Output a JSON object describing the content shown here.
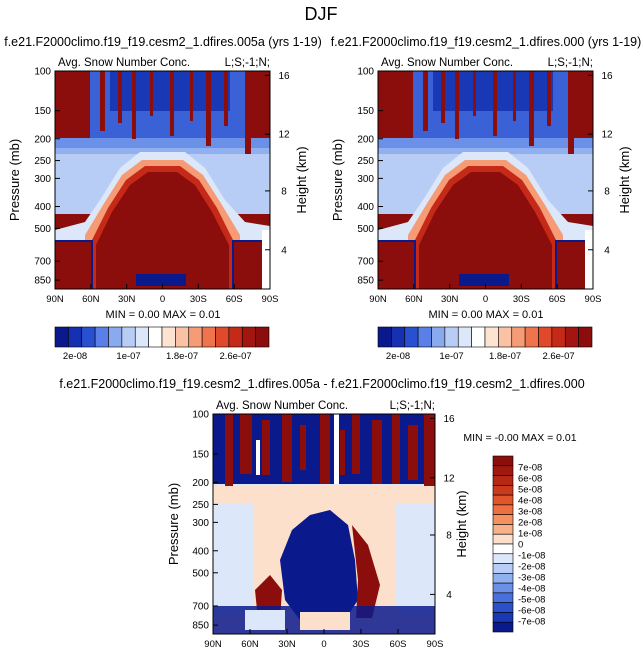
{
  "page_title": "DJF",
  "colors": {
    "dark_red": "#8b0d0c",
    "dark_blue": "#0a1a8c",
    "white": "#ffffff"
  },
  "chart_data": [
    {
      "type": "heatmap",
      "title": "f.e21.F2000climo.f19_f19.cesm2_1.dfires.005a (yrs 1-19)",
      "subtitle_left": "Avg. Snow Number Conc.",
      "subtitle_right": "L;S;-1;N;",
      "ylabel": "Pressure (mb)",
      "y2label": "Height (km)",
      "yticks": [
        "100",
        "150",
        "200",
        "250",
        "300",
        "400",
        "500",
        "700",
        "850"
      ],
      "y2ticks": [
        "16",
        "12",
        "8",
        "4"
      ],
      "xticks": [
        "90N",
        "60N",
        "30N",
        "0",
        "30S",
        "60S",
        "90S"
      ],
      "stats": "MIN =  0.00  MAX =  0.01",
      "colorbar_labels": [
        "2e-08",
        "1e-07",
        "1.8e-07",
        "2.6e-07"
      ],
      "colorbar_colors": [
        "#0a1a8c",
        "#1530b0",
        "#2850d0",
        "#5a80e8",
        "#8aaaf0",
        "#b8cdf5",
        "#dce7fa",
        "#ffffff",
        "#fde3d2",
        "#f9c2a4",
        "#f59c76",
        "#ef744e",
        "#e04a2c",
        "#c52a18",
        "#a31510",
        "#8b0d0c"
      ]
    },
    {
      "type": "heatmap",
      "title": "f.e21.F2000climo.f19_f19.cesm2_1.dfires.000 (yrs 1-19)",
      "subtitle_left": "Avg. Snow Number Conc.",
      "subtitle_right": "L;S;-1;N;",
      "ylabel": "Pressure (mb)",
      "y2label": "Height (km)",
      "yticks": [
        "100",
        "150",
        "200",
        "250",
        "300",
        "400",
        "500",
        "700",
        "850"
      ],
      "y2ticks": [
        "16",
        "12",
        "8",
        "4"
      ],
      "xticks": [
        "90N",
        "60N",
        "30N",
        "0",
        "30S",
        "60S",
        "90S"
      ],
      "stats": "MIN =  0.00  MAX =  0.01",
      "colorbar_labels": [
        "2e-08",
        "1e-07",
        "1.8e-07",
        "2.6e-07"
      ],
      "colorbar_colors": [
        "#0a1a8c",
        "#1530b0",
        "#2850d0",
        "#5a80e8",
        "#8aaaf0",
        "#b8cdf5",
        "#dce7fa",
        "#ffffff",
        "#fde3d2",
        "#f9c2a4",
        "#f59c76",
        "#ef744e",
        "#e04a2c",
        "#c52a18",
        "#a31510",
        "#8b0d0c"
      ]
    },
    {
      "type": "heatmap",
      "title": "f.e21.F2000climo.f19_f19.cesm2_1.dfires.005a - f.e21.F2000climo.f19_f19.cesm2_1.dfires.000",
      "subtitle_left": "Avg. Snow Number Conc.",
      "subtitle_right": "L;S;-1;N;",
      "ylabel": "Pressure (mb)",
      "y2label": "Height (km)",
      "yticks": [
        "100",
        "150",
        "200",
        "250",
        "300",
        "400",
        "500",
        "700",
        "850"
      ],
      "y2ticks": [
        "16",
        "12",
        "8",
        "4"
      ],
      "xticks": [
        "90N",
        "60N",
        "30N",
        "0",
        "30S",
        "60S",
        "90S"
      ],
      "stats": "MIN = -0.00  MAX =  0.01",
      "colorbar_labels": [
        "7e-08",
        "6e-08",
        "5e-08",
        "4e-08",
        "3e-08",
        "2e-08",
        "1e-08",
        "0",
        "-1e-08",
        "-2e-08",
        "-3e-08",
        "-4e-08",
        "-5e-08",
        "-6e-08",
        "-7e-08"
      ],
      "colorbar_colors": [
        "#8b0d0c",
        "#a01810",
        "#b52814",
        "#cc3a1c",
        "#e0552a",
        "#ee7040",
        "#f59060",
        "#f8b088",
        "#fce0cc",
        "#ffffff",
        "#dce7fa",
        "#b8cdf5",
        "#90b0f0",
        "#6a90e8",
        "#4a70dd",
        "#2a50cc",
        "#1838b5",
        "#0a1a8c"
      ]
    }
  ]
}
